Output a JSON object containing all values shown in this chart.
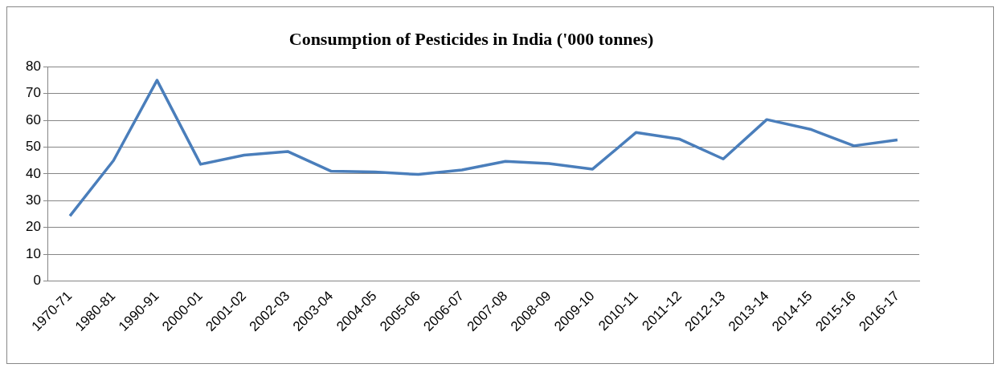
{
  "chart_data": {
    "type": "line",
    "title": "Consumption of Pesticides in India ('000 tonnes)",
    "categories": [
      "1970-71",
      "1980-81",
      "1990-91",
      "2000-01",
      "2001-02",
      "2002-03",
      "2003-04",
      "2004-05",
      "2005-06",
      "2006-07",
      "2007-08",
      "2008-09",
      "2009-10",
      "2010-11",
      "2011-12",
      "2012-13",
      "2013-14",
      "2014-15",
      "2015-16",
      "2016-17"
    ],
    "series": [
      {
        "color": "#4a7ebb",
        "values": [
          24.3,
          45.0,
          75.0,
          43.6,
          47.0,
          48.4,
          41.0,
          40.7,
          39.8,
          41.5,
          44.7,
          43.9,
          41.8,
          55.5,
          53.0,
          45.6,
          60.3,
          56.7,
          50.5,
          52.7
        ]
      }
    ],
    "ylim": [
      0,
      80
    ],
    "yticks": [
      0,
      10,
      20,
      30,
      40,
      50,
      60,
      70,
      80
    ],
    "grid": "y",
    "legend": false,
    "marker": "none",
    "line_style": "solid"
  }
}
